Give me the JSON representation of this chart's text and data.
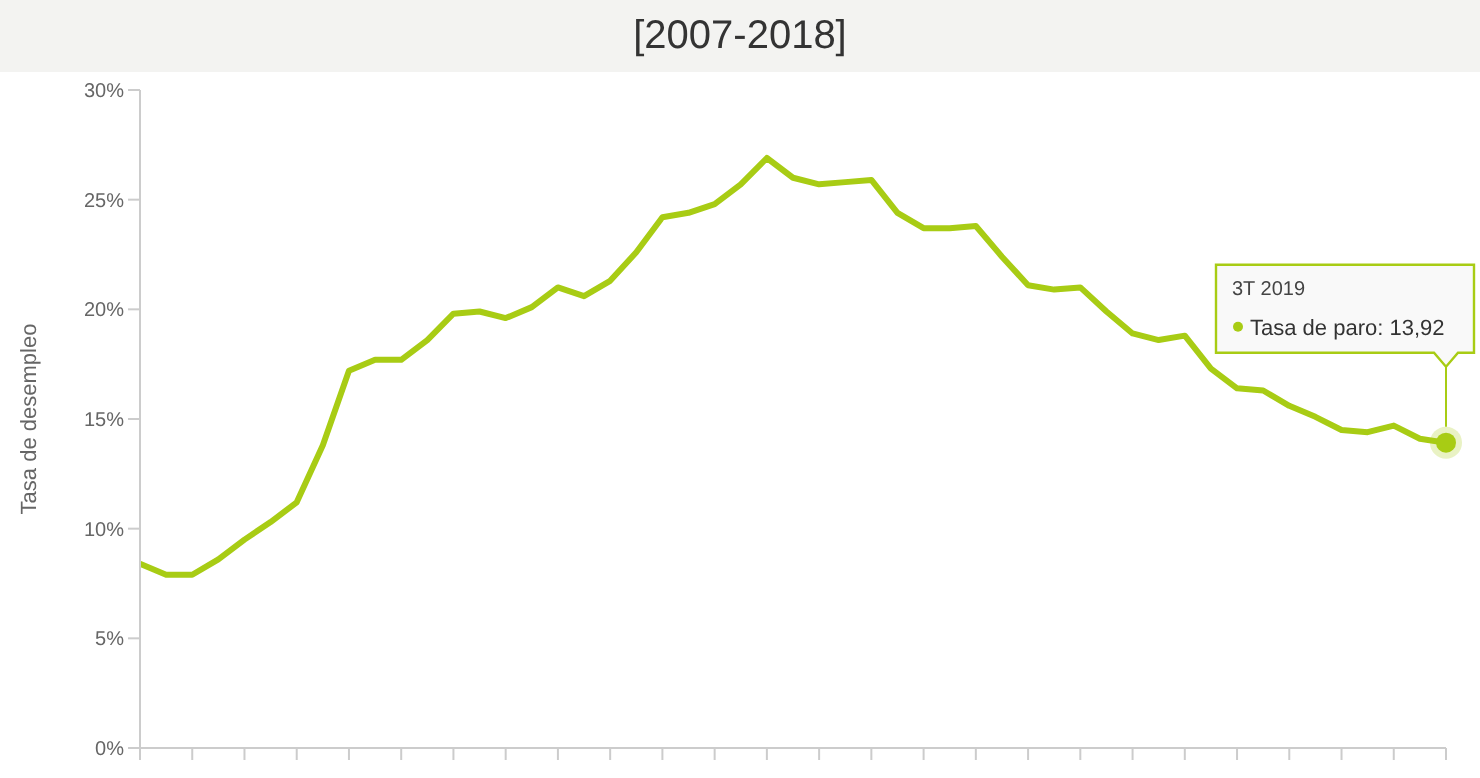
{
  "chart_data": {
    "type": "line",
    "title": "[2007-2018]",
    "ylabel": "Tasa de desempleo",
    "categories": [
      null,
      null,
      null,
      null,
      null,
      null,
      null,
      null,
      null,
      null,
      null,
      null,
      null,
      null,
      null,
      null,
      null,
      null,
      null,
      null,
      null,
      null,
      null,
      null,
      null,
      null,
      null,
      null,
      null,
      null,
      null,
      null,
      null,
      null,
      null,
      null,
      null,
      null,
      null,
      null,
      null,
      null,
      null,
      null,
      null,
      null,
      null,
      null,
      null,
      null,
      null
    ],
    "series": [
      {
        "color": "#a8cc14",
        "values": [
          8.4,
          7.9,
          7.9,
          8.6,
          9.5,
          10.3,
          11.2,
          13.8,
          17.2,
          17.7,
          17.7,
          18.6,
          19.8,
          19.9,
          19.6,
          20.1,
          21.0,
          20.6,
          21.3,
          22.6,
          24.2,
          24.4,
          24.8,
          25.7,
          26.9,
          26.0,
          25.7,
          25.8,
          25.9,
          24.4,
          23.7,
          23.7,
          23.8,
          22.4,
          21.1,
          20.9,
          21.0,
          19.9,
          18.9,
          18.6,
          18.8,
          17.3,
          16.4,
          16.3,
          15.6,
          15.1,
          14.5,
          14.4,
          14.7,
          14.1,
          13.92
        ]
      }
    ],
    "annotations": [
      "3T 2019",
      "Tasa de paro: 13,92"
    ],
    "ylim": [
      0,
      30
    ],
    "yticks": [
      {
        "value": 0,
        "label": "0%"
      },
      {
        "value": 5,
        "label": "5%"
      },
      {
        "value": 10,
        "label": "10%"
      },
      {
        "value": 15,
        "label": "15%"
      },
      {
        "value": 20,
        "label": "20%"
      },
      {
        "value": 25,
        "label": "25%"
      },
      {
        "value": 30,
        "label": "30%"
      }
    ],
    "tick_labels": "y",
    "grid": false,
    "legend": false,
    "marker": "none",
    "line_style": "solid"
  }
}
